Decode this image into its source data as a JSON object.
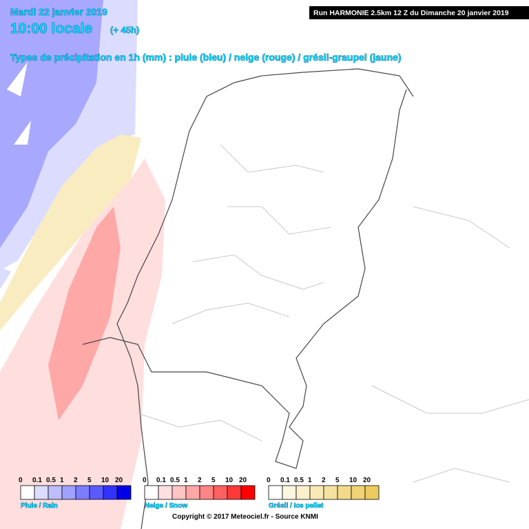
{
  "header": {
    "date": "Mardi 22 janvier 2019",
    "time": "10:00 locale",
    "lead": "(+ 45h)",
    "run": "Run HARMONIE 2.5km 12 Z du Dimanche 20 janvier 2019",
    "subtitle": "Types de précipitation en 1h (mm) : pluie (bleu) / neige (rouge) / grésil-graupel (jaune)"
  },
  "legends": [
    {
      "name": "Pluie / Rain",
      "labels": [
        0,
        0.1,
        0.5,
        1,
        2,
        5,
        10,
        20
      ],
      "colors": [
        "#ffffff",
        "#dcdcff",
        "#bebeff",
        "#a0a0ff",
        "#7c7cff",
        "#5a5aff",
        "#3232ff",
        "#0000e6"
      ]
    },
    {
      "name": "Neige / Snow",
      "labels": [
        0,
        0.1,
        0.5,
        1,
        2,
        5,
        10,
        20
      ],
      "colors": [
        "#ffffff",
        "#ffe0e0",
        "#ffc4c4",
        "#ffa6a6",
        "#ff8484",
        "#ff6060",
        "#ff3838",
        "#ff0000"
      ]
    },
    {
      "name": "Grésil / Ice pellet",
      "labels": [
        0,
        0.1,
        0.5,
        1,
        2,
        5,
        10,
        20
      ],
      "colors": [
        "#ffffff",
        "#fdf6e0",
        "#fbf0cc",
        "#f9e9b6",
        "#f6e2a0",
        "#f3da8a",
        "#f0d374",
        "#edcb5e"
      ]
    }
  ],
  "copyright": "Copyright © 2017 Meteociel.fr - Source KNMI"
}
